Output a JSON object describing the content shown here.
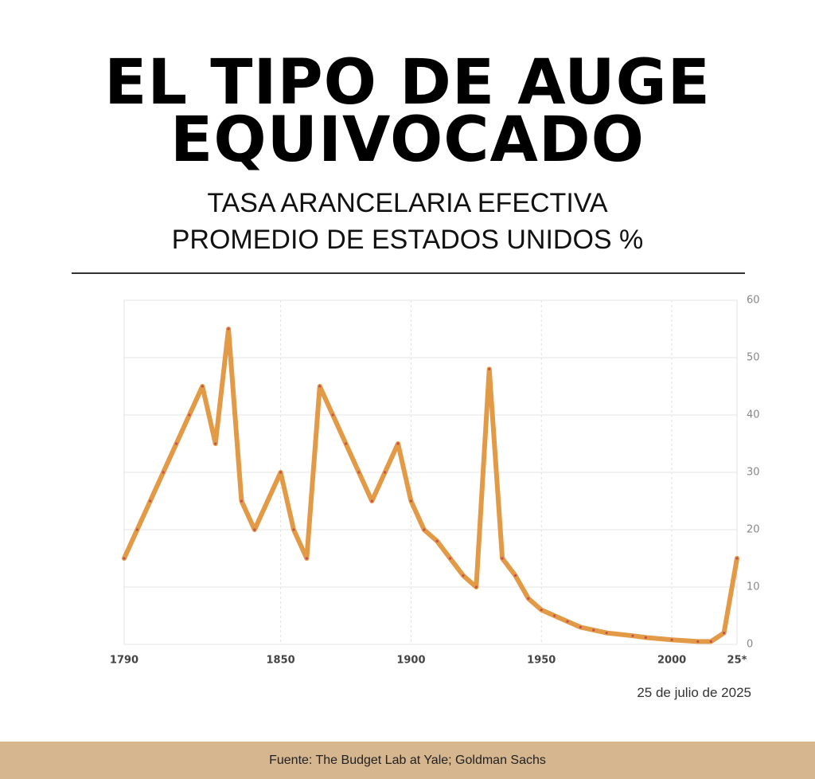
{
  "chart_data": {
    "type": "line",
    "title": [
      "EL TIPO DE AUGE",
      "EQUIVOCADO"
    ],
    "subtitle": [
      "TASA ARANCELARIA EFECTIVA",
      "PROMEDIO DE ESTADOS UNIDOS %"
    ],
    "x": [
      1790,
      1795,
      1800,
      1805,
      1810,
      1815,
      1820,
      1825,
      1830,
      1835,
      1840,
      1850,
      1855,
      1860,
      1865,
      1870,
      1875,
      1880,
      1885,
      1890,
      1895,
      1900,
      1905,
      1910,
      1915,
      1920,
      1925,
      1930,
      1935,
      1940,
      1945,
      1950,
      1955,
      1960,
      1965,
      1970,
      1975,
      1985,
      1990,
      2000,
      2010,
      2015,
      2020,
      2025
    ],
    "series": [
      {
        "color": "#e39a46",
        "values": [
          15,
          20,
          25,
          30,
          35,
          40,
          45,
          35,
          55,
          25,
          20,
          30,
          20,
          15,
          45,
          40,
          35,
          30,
          25,
          30,
          35,
          25,
          20,
          18,
          15,
          12,
          10,
          48,
          15,
          12,
          8,
          6,
          5,
          4,
          3,
          2.5,
          2,
          1.5,
          1.2,
          0.8,
          0.5,
          0.5,
          2,
          15
        ]
      }
    ],
    "xlim": [
      1790,
      2025
    ],
    "xticks": [
      1790,
      1850,
      1900,
      1950,
      2000,
      {
        "value": 2025,
        "label": "25*"
      }
    ],
    "ylim": [
      0,
      60
    ],
    "yticks": [
      0,
      10,
      20,
      30,
      40,
      50,
      60
    ],
    "grid": true,
    "note": "25 de julio de 2025",
    "source": "Fuente: The Budget Lab at Yale; Goldman Sachs"
  }
}
